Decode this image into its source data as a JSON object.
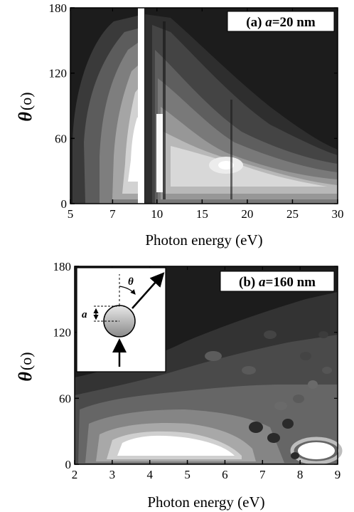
{
  "chart_data": [
    {
      "type": "heatmap",
      "panel_label": "(a)",
      "title_prefix": "(a) ",
      "title_var": "a",
      "title_value": "=20 nm",
      "xlabel": "Photon energy (eV)",
      "ylabel_symbol": "θ",
      "ylabel_unit": "(o)",
      "xlim": [
        5,
        30
      ],
      "ylim": [
        0,
        180
      ],
      "x_break": [
        8.2,
        8.6
      ],
      "xticks": [
        5,
        7,
        10,
        15,
        20,
        25,
        30
      ],
      "yticks": [
        0,
        60,
        120,
        180
      ],
      "colors": {
        "low": "#1c1c1c",
        "high": "#ffffff"
      },
      "features": [
        {
          "x": 8.0,
          "y": 40,
          "label": ""
        },
        {
          "x": 9.7,
          "y": 45,
          "label": ""
        },
        {
          "x": 17.5,
          "y": 35,
          "label": ""
        }
      ]
    },
    {
      "type": "heatmap",
      "panel_label": "(b)",
      "title_prefix": "(b) ",
      "title_var": "a",
      "title_value": "=160 nm",
      "xlabel": "Photon energy (eV)",
      "ylabel_symbol": "θ",
      "ylabel_unit": "(o)",
      "xlim": [
        2,
        9
      ],
      "ylim": [
        0,
        180
      ],
      "xticks": [
        2,
        3,
        4,
        5,
        6,
        7,
        8,
        9
      ],
      "yticks": [
        0,
        60,
        120,
        180
      ],
      "colors": {
        "low": "#1c1c1c",
        "high": "#ffffff"
      },
      "inset": {
        "angle_label": "θ",
        "radius_label": "a"
      }
    }
  ]
}
